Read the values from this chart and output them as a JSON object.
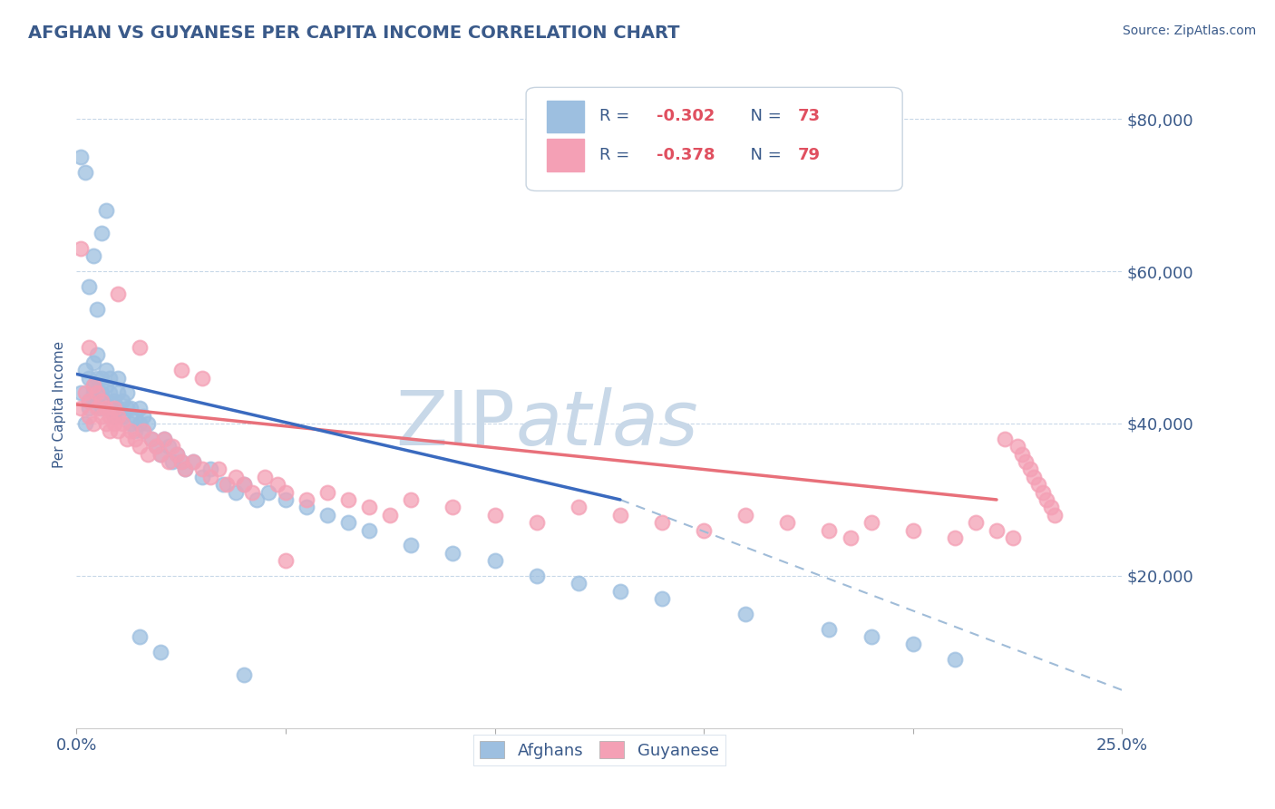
{
  "title": "AFGHAN VS GUYANESE PER CAPITA INCOME CORRELATION CHART",
  "source_text": "Source: ZipAtlas.com",
  "ylabel": "Per Capita Income",
  "xlim": [
    0.0,
    0.25
  ],
  "ylim": [
    0,
    85000
  ],
  "xticks": [
    0.0,
    0.05,
    0.1,
    0.15,
    0.2,
    0.25
  ],
  "xticklabels_show": [
    "0.0%",
    "25.0%"
  ],
  "yticks": [
    0,
    20000,
    40000,
    60000,
    80000
  ],
  "yticklabels": [
    "",
    "$20,000",
    "$40,000",
    "$60,000",
    "$80,000"
  ],
  "afghan_color": "#9dbfe0",
  "guyanese_color": "#f4a0b5",
  "trend_afghan_color": "#3a6abf",
  "trend_guyanese_color": "#e8707a",
  "trend_ext_color": "#a0bcd8",
  "watermark_zip": "ZIP",
  "watermark_atlas": "atlas",
  "watermark_color_zip": "#c8d8e8",
  "watermark_color_atlas": "#c8d8e8",
  "background_color": "#ffffff",
  "title_color": "#3a5a8a",
  "tick_color": "#3a5a8a",
  "legend_text_color": "#3a5a8a",
  "grid_color": "#c8d8e8",
  "afghans_x": [
    0.001,
    0.002,
    0.002,
    0.003,
    0.003,
    0.003,
    0.004,
    0.004,
    0.004,
    0.005,
    0.005,
    0.005,
    0.006,
    0.006,
    0.006,
    0.007,
    0.007,
    0.007,
    0.008,
    0.008,
    0.008,
    0.009,
    0.009,
    0.01,
    0.01,
    0.01,
    0.011,
    0.011,
    0.012,
    0.012,
    0.013,
    0.013,
    0.014,
    0.014,
    0.015,
    0.015,
    0.016,
    0.016,
    0.017,
    0.018,
    0.019,
    0.02,
    0.021,
    0.022,
    0.023,
    0.024,
    0.025,
    0.026,
    0.028,
    0.03,
    0.032,
    0.035,
    0.038,
    0.04,
    0.043,
    0.046,
    0.05,
    0.055,
    0.06,
    0.065,
    0.07,
    0.08,
    0.09,
    0.1,
    0.11,
    0.12,
    0.13,
    0.14,
    0.16,
    0.18,
    0.19,
    0.2,
    0.21
  ],
  "afghans_y": [
    44000,
    47000,
    40000,
    46000,
    43000,
    42000,
    45000,
    48000,
    44000,
    43000,
    46000,
    49000,
    44000,
    46000,
    42000,
    43000,
    45000,
    47000,
    44000,
    42000,
    46000,
    43000,
    41000,
    44000,
    46000,
    42000,
    43000,
    41000,
    42000,
    44000,
    40000,
    42000,
    41000,
    39000,
    40000,
    42000,
    39000,
    41000,
    40000,
    38000,
    37000,
    36000,
    38000,
    37000,
    35000,
    36000,
    35000,
    34000,
    35000,
    33000,
    34000,
    32000,
    31000,
    32000,
    30000,
    31000,
    30000,
    29000,
    28000,
    27000,
    26000,
    24000,
    23000,
    22000,
    20000,
    19000,
    18000,
    17000,
    15000,
    13000,
    12000,
    11000,
    9000
  ],
  "afghans_y_outliers": [
    [
      0.001,
      75000
    ],
    [
      0.002,
      73000
    ],
    [
      0.004,
      62000
    ],
    [
      0.005,
      55000
    ],
    [
      0.006,
      65000
    ],
    [
      0.007,
      68000
    ],
    [
      0.003,
      58000
    ],
    [
      0.015,
      12000
    ],
    [
      0.02,
      10000
    ],
    [
      0.04,
      7000
    ]
  ],
  "guyanese_x": [
    0.001,
    0.002,
    0.003,
    0.003,
    0.004,
    0.004,
    0.005,
    0.005,
    0.006,
    0.006,
    0.007,
    0.007,
    0.008,
    0.008,
    0.009,
    0.009,
    0.01,
    0.01,
    0.011,
    0.012,
    0.013,
    0.014,
    0.015,
    0.016,
    0.017,
    0.018,
    0.019,
    0.02,
    0.021,
    0.022,
    0.023,
    0.024,
    0.025,
    0.026,
    0.028,
    0.03,
    0.032,
    0.034,
    0.036,
    0.038,
    0.04,
    0.042,
    0.045,
    0.048,
    0.05,
    0.055,
    0.06,
    0.065,
    0.07,
    0.075,
    0.08,
    0.09,
    0.1,
    0.11,
    0.12,
    0.13,
    0.14,
    0.15,
    0.16,
    0.17,
    0.18,
    0.185,
    0.19,
    0.2,
    0.21,
    0.215,
    0.22,
    0.222,
    0.224,
    0.225,
    0.226,
    0.227,
    0.228,
    0.229,
    0.23,
    0.231,
    0.232,
    0.233,
    0.234
  ],
  "guyanese_y": [
    42000,
    44000,
    43000,
    41000,
    45000,
    40000,
    42000,
    44000,
    41000,
    43000,
    40000,
    42000,
    41000,
    39000,
    42000,
    40000,
    41000,
    39000,
    40000,
    38000,
    39000,
    38000,
    37000,
    39000,
    36000,
    38000,
    37000,
    36000,
    38000,
    35000,
    37000,
    36000,
    35000,
    34000,
    35000,
    34000,
    33000,
    34000,
    32000,
    33000,
    32000,
    31000,
    33000,
    32000,
    31000,
    30000,
    31000,
    30000,
    29000,
    28000,
    30000,
    29000,
    28000,
    27000,
    29000,
    28000,
    27000,
    26000,
    28000,
    27000,
    26000,
    25000,
    27000,
    26000,
    25000,
    27000,
    26000,
    38000,
    25000,
    37000,
    36000,
    35000,
    34000,
    33000,
    32000,
    31000,
    30000,
    29000,
    28000
  ],
  "guyanese_y_outliers": [
    [
      0.001,
      63000
    ],
    [
      0.003,
      50000
    ],
    [
      0.01,
      57000
    ],
    [
      0.015,
      50000
    ],
    [
      0.025,
      47000
    ],
    [
      0.03,
      46000
    ],
    [
      0.05,
      22000
    ]
  ],
  "trend_afghan_x0": 0.0,
  "trend_afghan_x1": 0.13,
  "trend_afghan_y0": 46500,
  "trend_afghan_y1": 30000,
  "trend_guyanese_x0": 0.0,
  "trend_guyanese_x1": 0.22,
  "trend_guyanese_y0": 42500,
  "trend_guyanese_y1": 30000,
  "trend_ext_x0": 0.13,
  "trend_ext_x1": 0.25,
  "trend_ext_y0": 30000,
  "trend_ext_y1": 5000
}
